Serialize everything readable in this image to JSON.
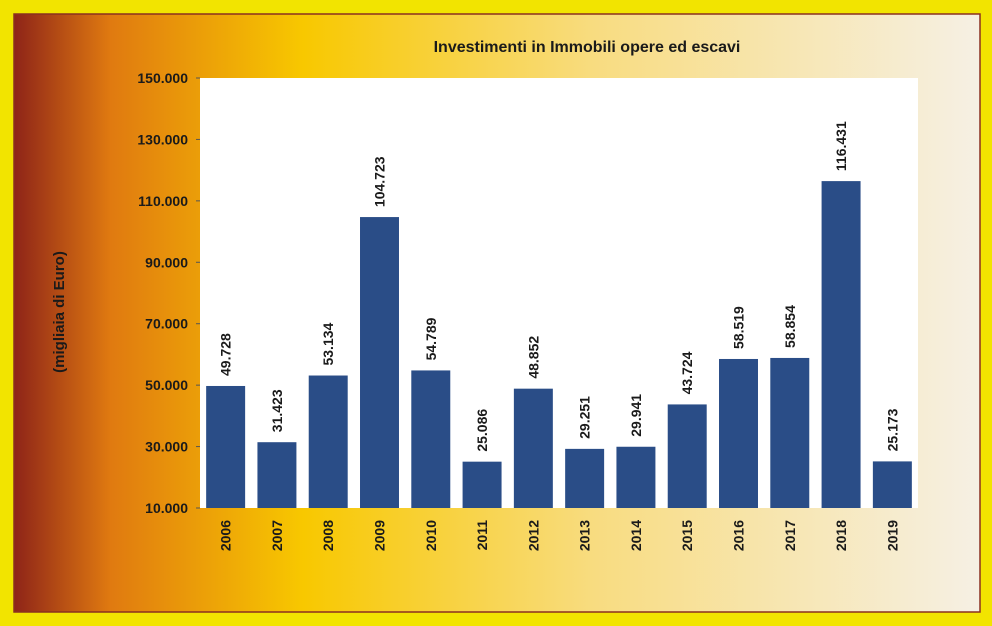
{
  "chart_data": {
    "type": "bar",
    "title": "Investimenti in Immobili opere ed escavi",
    "y_label": "(migliaia di Euro)",
    "categories": [
      "2006",
      "2007",
      "2008",
      "2009",
      "2010",
      "2011",
      "2012",
      "2013",
      "2014",
      "2015",
      "2016",
      "2017",
      "2018",
      "2019"
    ],
    "values": [
      49728,
      31423,
      53134,
      104723,
      54789,
      25086,
      48852,
      29251,
      29941,
      43724,
      58519,
      58854,
      116431,
      25173
    ],
    "value_labels": [
      "49.728",
      "31.423",
      "53.134",
      "104.723",
      "54.789",
      "25.086",
      "48.852",
      "29.251",
      "29.941",
      "43.724",
      "58.519",
      "58.854",
      "116.431",
      "25.173"
    ],
    "color": "#2a4d87",
    "ylim": [
      10000,
      150000
    ],
    "yticks": [
      {
        "value": 10000,
        "label": "10.000"
      },
      {
        "value": 30000,
        "label": "30.000"
      },
      {
        "value": 50000,
        "label": "50.000"
      },
      {
        "value": 70000,
        "label": "70.000"
      },
      {
        "value": 90000,
        "label": "90.000"
      },
      {
        "value": 110000,
        "label": "110.000"
      },
      {
        "value": 130000,
        "label": "130.000"
      },
      {
        "value": 150000,
        "label": "150.000"
      }
    ],
    "grid": false
  }
}
